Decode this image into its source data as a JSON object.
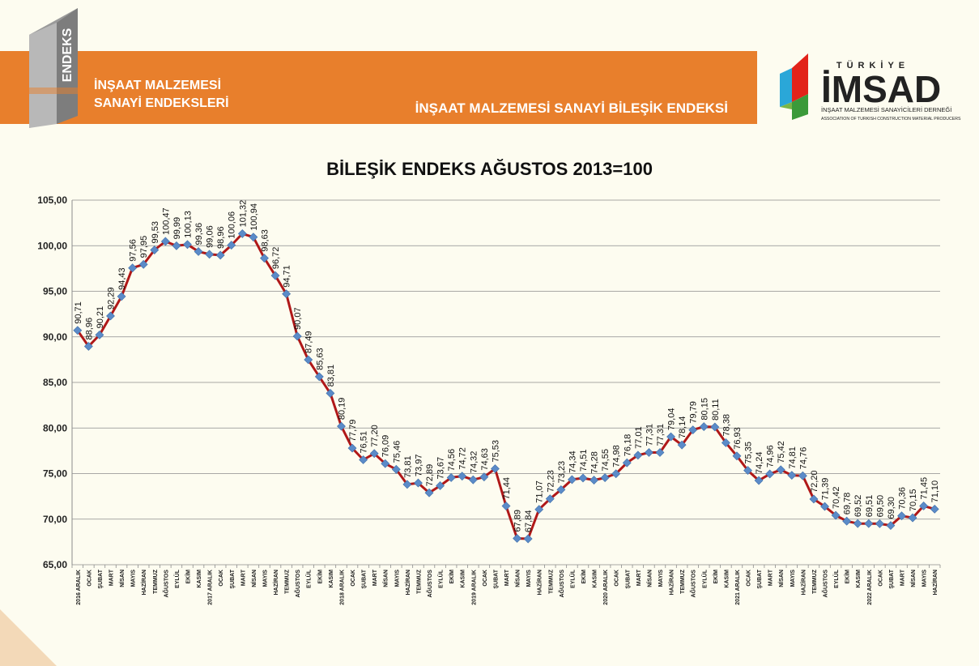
{
  "header": {
    "logo_vertical_text": "ENDEKS",
    "brand_line1": "İNŞAAT MALZEMESİ",
    "brand_line2": "SANAYİ ENDEKSLERİ",
    "banner_subtitle": "İNŞAAT MALZEMESİ SANAYİ BİLEŞİK ENDEKSİ"
  },
  "imsad_logo": {
    "country": "TÜRKİYE",
    "name": "İMSAD",
    "line1": "İNŞAAT MALZEMESİ SANAYİCİLERİ DERNEĞİ",
    "line2": "ASSOCIATION OF TURKISH CONSTRUCTION MATERIAL PRODUCERS"
  },
  "colors": {
    "banner": "#e87f2c",
    "line": "#b01818",
    "marker": "#5b8bc8"
  },
  "chart_data": {
    "type": "line",
    "title": "BİLEŞİK ENDEKS AĞUSTOS 2013=100",
    "xlabel": "",
    "ylabel": "",
    "ylim": [
      65,
      105
    ],
    "yticks": [
      "65,00",
      "70,00",
      "75,00",
      "80,00",
      "85,00",
      "90,00",
      "95,00",
      "100,00",
      "105,00"
    ],
    "grid": true,
    "legend": "none",
    "categories": [
      "2016 ARALIK",
      "OCAK",
      "ŞUBAT",
      "MART",
      "NİSAN",
      "MAYIS",
      "HAZİRAN",
      "TEMMUZ",
      "AĞUSTOS",
      "EYLÜL",
      "EKİM",
      "KASIM",
      "2017 ARALIK",
      "OCAK",
      "ŞUBAT",
      "MART",
      "NİSAN",
      "MAYIS",
      "HAZİRAN",
      "TEMMUZ",
      "AĞUSTOS",
      "EYLÜL",
      "EKİM",
      "KASIM",
      "2018 ARALIK",
      "OCAK",
      "ŞUBAT",
      "MART",
      "NİSAN",
      "MAYIS",
      "HAZİRAN",
      "TEMMUZ",
      "AĞUSTOS",
      "EYLÜL",
      "EKİM",
      "KASIM",
      "2019 ARALIK",
      "OCAK",
      "ŞUBAT",
      "MART",
      "NİSAN",
      "MAYIS",
      "HAZİRAN",
      "TEMMUZ",
      "AĞUSTOS",
      "EYLÜL",
      "EKİM",
      "KASIM",
      "2020 ARALIK",
      "OCAK",
      "ŞUBAT",
      "MART",
      "NİSAN",
      "MAYIS",
      "HAZİRAN",
      "TEMMUZ",
      "AĞUSTOS",
      "EYLÜL",
      "EKİM",
      "KASIM",
      "2021 ARALIK",
      "OCAK",
      "ŞUBAT",
      "MART",
      "NİSAN",
      "MAYIS",
      "HAZİRAN",
      "TEMMUZ",
      "AĞUSTOS",
      "EYLÜL",
      "EKİM",
      "KASIM",
      "2022 ARALIK",
      "OCAK",
      "ŞUBAT",
      "MART",
      "NİSAN",
      "MAYIS",
      "HAZİRAN"
    ],
    "values": [
      90.71,
      88.96,
      90.21,
      92.29,
      94.43,
      97.56,
      97.95,
      99.53,
      100.47,
      99.99,
      100.13,
      99.36,
      99.06,
      98.96,
      100.06,
      101.32,
      100.94,
      98.63,
      96.72,
      94.71,
      90.07,
      87.49,
      85.63,
      83.81,
      80.19,
      77.79,
      76.51,
      77.2,
      76.09,
      75.46,
      73.81,
      73.97,
      72.89,
      73.67,
      74.56,
      74.72,
      74.32,
      74.63,
      75.53,
      71.44,
      67.89,
      67.84,
      71.07,
      72.23,
      73.23,
      74.34,
      74.51,
      74.28,
      74.55,
      74.98,
      76.18,
      77.01,
      77.31,
      77.31,
      79.04,
      78.14,
      79.79,
      80.15,
      80.11,
      78.38,
      76.93,
      75.35,
      74.24,
      74.96,
      75.42,
      74.81,
      74.76,
      72.2,
      71.39,
      70.42,
      69.78,
      69.52,
      69.51,
      69.5,
      69.3,
      70.36,
      70.15,
      71.45,
      71.1
    ],
    "labels": [
      "90,71",
      "88,96",
      "90,21",
      "92,29",
      "94,43",
      "97,56",
      "97,95",
      "99,53",
      "100,47",
      "99,99",
      "100,13",
      "99,36",
      "99,06",
      "98,96",
      "100,06",
      "101,32",
      "100,94",
      "98,63",
      "96,72",
      "94,71",
      "90,07",
      "87,49",
      "85,63",
      "83,81",
      "80,19",
      "77,79",
      "76,51",
      "77,20",
      "76,09",
      "75,46",
      "73,81",
      "73,97",
      "72,89",
      "73,67",
      "74,56",
      "74,72",
      "74,32",
      "74,63",
      "75,53",
      "71,44",
      "67,89",
      "67,84",
      "71,07",
      "72,23",
      "73,23",
      "74,34",
      "74,51",
      "74,28",
      "74,55",
      "74,98",
      "76,18",
      "77,01",
      "77,31",
      "77,31",
      "79,04",
      "78,14",
      "79,79",
      "80,15",
      "80,11",
      "78,38",
      "76,93",
      "75,35",
      "74,24",
      "74,96",
      "75,42",
      "74,81",
      "74,76",
      "72,20",
      "71,39",
      "70,42",
      "69,78",
      "69,52",
      "69,51",
      "69,50",
      "69,30",
      "70,36",
      "70,15",
      "71,45",
      "71,10"
    ]
  }
}
